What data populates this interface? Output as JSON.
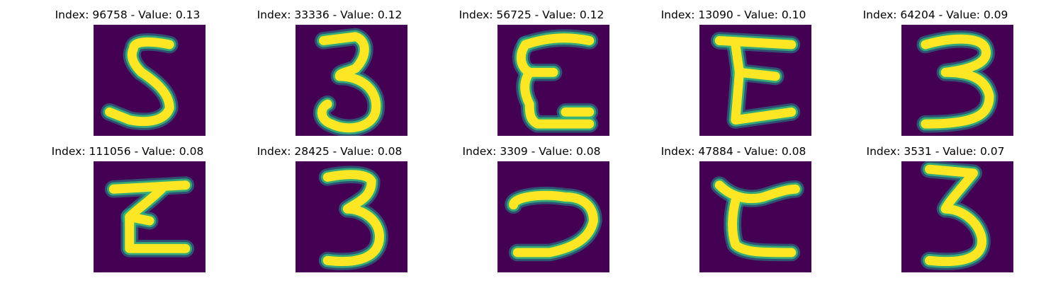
{
  "colors": {
    "background": "#440154",
    "stroke_core": "#fde725",
    "stroke_mid": "#35b779",
    "stroke_edge": "#21918c"
  },
  "panels": [
    {
      "title": "Index: 96758 - Value: 0.13",
      "index": 96758,
      "value": 0.13
    },
    {
      "title": "Index: 33336 - Value: 0.12",
      "index": 33336,
      "value": 0.12
    },
    {
      "title": "Index: 56725 - Value: 0.12",
      "index": 56725,
      "value": 0.12
    },
    {
      "title": "Index: 13090 - Value: 0.10",
      "index": 13090,
      "value": 0.1
    },
    {
      "title": "Index: 64204 - Value: 0.09",
      "index": 64204,
      "value": 0.09
    },
    {
      "title": "Index: 111056 - Value: 0.08",
      "index": 111056,
      "value": 0.08
    },
    {
      "title": "Index: 28425 - Value: 0.08",
      "index": 28425,
      "value": 0.08
    },
    {
      "title": "Index: 3309 - Value: 0.08",
      "index": 3309,
      "value": 0.08
    },
    {
      "title": "Index: 47884 - Value: 0.08",
      "index": 47884,
      "value": 0.08
    },
    {
      "title": "Index: 3531 - Value: 0.07",
      "index": 3531,
      "value": 0.07
    }
  ]
}
